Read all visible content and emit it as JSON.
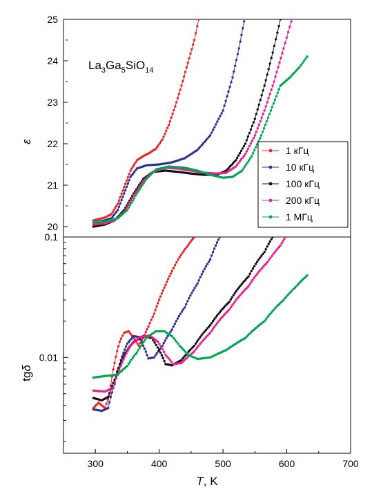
{
  "chart_data": [
    {
      "type": "line",
      "panel": "top",
      "annotation_parts": [
        "La",
        "3",
        "Ga",
        "5",
        "SiO",
        "14"
      ],
      "ylabel": "ε",
      "ylim": [
        19.75,
        25
      ],
      "xlim": [
        250,
        700
      ],
      "yscale": "linear",
      "yticks": [
        20,
        21,
        22,
        23,
        24,
        25
      ],
      "ytick_labels": [
        "20",
        "21",
        "22",
        "23",
        "24",
        "25"
      ],
      "legend_position": "right",
      "series": [
        {
          "name": "1 кГц",
          "color": "#e8262c",
          "points": [
            [
              297,
              20.15
            ],
            [
              305,
              20.18
            ],
            [
              315,
              20.22
            ],
            [
              325,
              20.3
            ],
            [
              335,
              20.55
            ],
            [
              345,
              20.95
            ],
            [
              355,
              21.35
            ],
            [
              365,
              21.6
            ],
            [
              375,
              21.7
            ],
            [
              385,
              21.78
            ],
            [
              395,
              21.88
            ],
            [
              405,
              22.1
            ],
            [
              415,
              22.45
            ],
            [
              425,
              22.9
            ],
            [
              435,
              23.4
            ],
            [
              445,
              23.95
            ],
            [
              455,
              24.5
            ],
            [
              462,
              25.0
            ]
          ]
        },
        {
          "name": "10 кГц",
          "color": "#2e3192",
          "points": [
            [
              297,
              20.1
            ],
            [
              310,
              20.13
            ],
            [
              325,
              20.2
            ],
            [
              335,
              20.4
            ],
            [
              345,
              20.8
            ],
            [
              355,
              21.2
            ],
            [
              365,
              21.4
            ],
            [
              380,
              21.48
            ],
            [
              400,
              21.5
            ],
            [
              420,
              21.55
            ],
            [
              440,
              21.65
            ],
            [
              460,
              21.85
            ],
            [
              480,
              22.2
            ],
            [
              500,
              22.8
            ],
            [
              515,
              23.6
            ],
            [
              525,
              24.3
            ],
            [
              533,
              24.95
            ]
          ]
        },
        {
          "name": "100 кГц",
          "color": "#111111",
          "points": [
            [
              297,
              20.0
            ],
            [
              315,
              20.05
            ],
            [
              330,
              20.15
            ],
            [
              345,
              20.4
            ],
            [
              360,
              20.8
            ],
            [
              375,
              21.15
            ],
            [
              390,
              21.32
            ],
            [
              410,
              21.35
            ],
            [
              430,
              21.32
            ],
            [
              450,
              21.28
            ],
            [
              470,
              21.25
            ],
            [
              490,
              21.25
            ],
            [
              505,
              21.35
            ],
            [
              520,
              21.6
            ],
            [
              535,
              22.0
            ],
            [
              550,
              22.6
            ],
            [
              565,
              23.4
            ],
            [
              578,
              24.2
            ],
            [
              590,
              25.0
            ]
          ]
        },
        {
          "name": "200 кГц",
          "color": "#e6208c",
          "points": [
            [
              297,
              20.05
            ],
            [
              315,
              20.08
            ],
            [
              330,
              20.15
            ],
            [
              345,
              20.35
            ],
            [
              360,
              20.75
            ],
            [
              375,
              21.1
            ],
            [
              390,
              21.32
            ],
            [
              410,
              21.42
            ],
            [
              430,
              21.4
            ],
            [
              450,
              21.35
            ],
            [
              470,
              21.3
            ],
            [
              490,
              21.28
            ],
            [
              505,
              21.3
            ],
            [
              520,
              21.45
            ],
            [
              535,
              21.75
            ],
            [
              550,
              22.2
            ],
            [
              565,
              22.8
            ],
            [
              580,
              23.5
            ],
            [
              595,
              24.3
            ],
            [
              607,
              24.95
            ]
          ]
        },
        {
          "name": "1 МГц",
          "color": "#00a651",
          "points": [
            [
              297,
              20.1
            ],
            [
              315,
              20.12
            ],
            [
              335,
              20.2
            ],
            [
              350,
              20.4
            ],
            [
              365,
              20.8
            ],
            [
              380,
              21.15
            ],
            [
              395,
              21.38
            ],
            [
              415,
              21.45
            ],
            [
              440,
              21.42
            ],
            [
              460,
              21.35
            ],
            [
              480,
              21.25
            ],
            [
              500,
              21.18
            ],
            [
              515,
              21.2
            ],
            [
              530,
              21.35
            ],
            [
              545,
              21.7
            ],
            [
              560,
              22.2
            ],
            [
              575,
              22.8
            ],
            [
              590,
              23.4
            ],
            [
              605,
              23.6
            ],
            [
              620,
              23.85
            ],
            [
              632,
              24.1
            ]
          ]
        }
      ]
    },
    {
      "type": "line",
      "panel": "bottom",
      "ylabel_parts": [
        "tg",
        "δ"
      ],
      "xlabel_parts": [
        "T",
        ", K"
      ],
      "ylim": [
        0.0016,
        0.1
      ],
      "xlim": [
        250,
        700
      ],
      "yscale": "log",
      "yticks": [
        0.01,
        0.1
      ],
      "ytick_labels": [
        "0.01",
        "0.1"
      ],
      "xticks": [
        300,
        400,
        500,
        600,
        700
      ],
      "xtick_labels": [
        "300",
        "400",
        "500",
        "600",
        "700"
      ],
      "series": [
        {
          "name": "1 кГц",
          "color": "#e8262c",
          "points": [
            [
              297,
              0.0038
            ],
            [
              305,
              0.0042
            ],
            [
              315,
              0.0038
            ],
            [
              322,
              0.0048
            ],
            [
              330,
              0.009
            ],
            [
              338,
              0.0135
            ],
            [
              345,
              0.016
            ],
            [
              352,
              0.0165
            ],
            [
              360,
              0.0145
            ],
            [
              368,
              0.0125
            ],
            [
              375,
              0.0145
            ],
            [
              383,
              0.018
            ],
            [
              392,
              0.023
            ],
            [
              400,
              0.03
            ],
            [
              410,
              0.04
            ],
            [
              420,
              0.052
            ],
            [
              432,
              0.068
            ],
            [
              445,
              0.085
            ],
            [
              455,
              0.1
            ]
          ]
        },
        {
          "name": "10 кГц",
          "color": "#2e3192",
          "points": [
            [
              297,
              0.0037
            ],
            [
              310,
              0.0036
            ],
            [
              320,
              0.0038
            ],
            [
              330,
              0.006
            ],
            [
              340,
              0.0095
            ],
            [
              350,
              0.013
            ],
            [
              360,
              0.015
            ],
            [
              368,
              0.0148
            ],
            [
              375,
              0.0125
            ],
            [
              383,
              0.0098
            ],
            [
              392,
              0.01
            ],
            [
              405,
              0.0125
            ],
            [
              420,
              0.017
            ],
            [
              440,
              0.026
            ],
            [
              460,
              0.041
            ],
            [
              480,
              0.065
            ],
            [
              495,
              0.1
            ]
          ]
        },
        {
          "name": "100 кГц",
          "color": "#111111",
          "points": [
            [
              297,
              0.0046
            ],
            [
              310,
              0.0044
            ],
            [
              320,
              0.0047
            ],
            [
              330,
              0.0065
            ],
            [
              345,
              0.0105
            ],
            [
              360,
              0.0135
            ],
            [
              375,
              0.015
            ],
            [
              388,
              0.0145
            ],
            [
              400,
              0.0115
            ],
            [
              410,
              0.0088
            ],
            [
              420,
              0.0086
            ],
            [
              435,
              0.0095
            ],
            [
              455,
              0.0125
            ],
            [
              480,
              0.0185
            ],
            [
              510,
              0.029
            ],
            [
              540,
              0.047
            ],
            [
              565,
              0.075
            ],
            [
              578,
              0.1
            ]
          ]
        },
        {
          "name": "200 кГц",
          "color": "#e6208c",
          "points": [
            [
              297,
              0.0053
            ],
            [
              315,
              0.0052
            ],
            [
              328,
              0.0056
            ],
            [
              340,
              0.0085
            ],
            [
              355,
              0.0125
            ],
            [
              370,
              0.0148
            ],
            [
              385,
              0.0152
            ],
            [
              398,
              0.0135
            ],
            [
              410,
              0.0105
            ],
            [
              422,
              0.0088
            ],
            [
              435,
              0.009
            ],
            [
              455,
              0.0112
            ],
            [
              480,
              0.016
            ],
            [
              510,
              0.025
            ],
            [
              540,
              0.039
            ],
            [
              570,
              0.062
            ],
            [
              590,
              0.085
            ],
            [
              598,
              0.1
            ]
          ]
        },
        {
          "name": "1 МГц",
          "color": "#00a651",
          "points": [
            [
              297,
              0.0068
            ],
            [
              315,
              0.007
            ],
            [
              335,
              0.0072
            ],
            [
              350,
              0.0085
            ],
            [
              365,
              0.011
            ],
            [
              380,
              0.0145
            ],
            [
              395,
              0.0165
            ],
            [
              408,
              0.0165
            ],
            [
              420,
              0.015
            ],
            [
              432,
              0.0125
            ],
            [
              445,
              0.0105
            ],
            [
              460,
              0.0097
            ],
            [
              480,
              0.01
            ],
            [
              505,
              0.0115
            ],
            [
              535,
              0.0145
            ],
            [
              565,
              0.02
            ],
            [
              595,
              0.03
            ],
            [
              615,
              0.039
            ],
            [
              632,
              0.048
            ]
          ]
        }
      ]
    }
  ]
}
